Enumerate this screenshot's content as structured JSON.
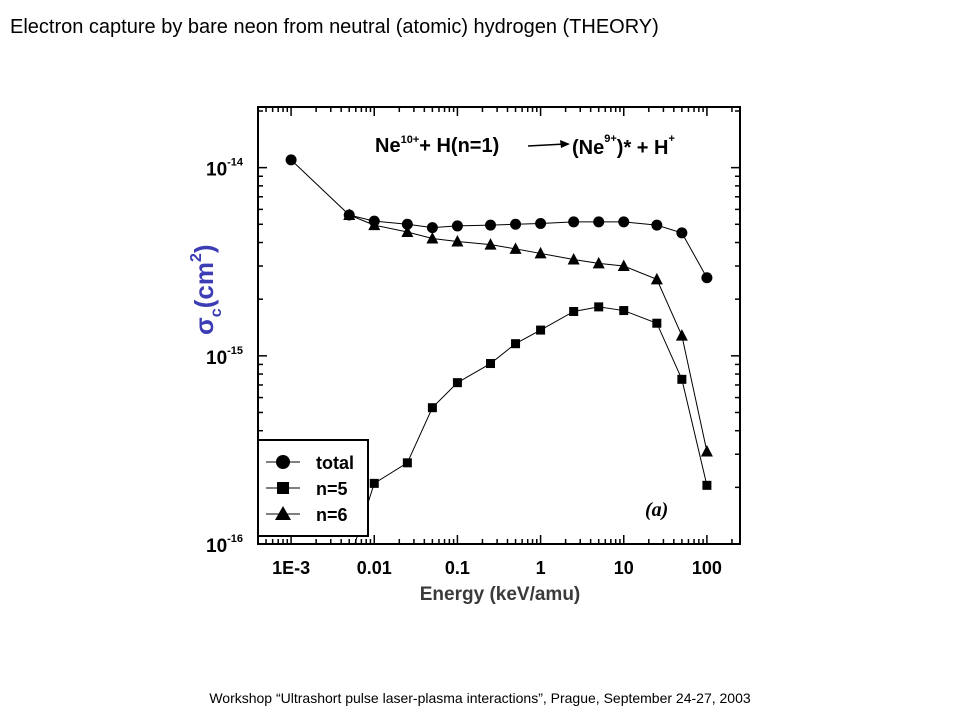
{
  "slide": {
    "title": "Electron capture by bare neon from neutral (atomic) hydrogen (THEORY)",
    "footer": "Workshop “Ultrashort pulse laser-plasma interactions”, Prague, September 24-27, 2003"
  },
  "chart_data": {
    "type": "line",
    "title": "",
    "reaction": {
      "lhs": "Ne",
      "lhs_sup": "10+",
      "plus1": "+ H(n=1)",
      "rhs_open": "(Ne",
      "rhs_sup": "9+",
      "rhs_close": ")* + H",
      "rhs_h_sup": "+"
    },
    "xlabel": "Energy (keV/amu)",
    "ylabel": {
      "sigma": "σ",
      "sub": "c",
      "unit": "(cm",
      "sup": "2",
      "close": ")"
    },
    "x_scale": "log",
    "y_scale": "log",
    "xlim": [
      0.0004,
      250
    ],
    "ylim": [
      1e-16,
      2.1e-14
    ],
    "x_ticks": [
      {
        "value": 0.001,
        "label": "1E-3"
      },
      {
        "value": 0.01,
        "label": "0.01"
      },
      {
        "value": 0.1,
        "label": "0.1"
      },
      {
        "value": 1,
        "label": "1"
      },
      {
        "value": 10,
        "label": "10"
      },
      {
        "value": 100,
        "label": "100"
      }
    ],
    "y_ticks": [
      {
        "value": 1e-16,
        "base": "10",
        "exp": "-16"
      },
      {
        "value": 1e-15,
        "base": "10",
        "exp": "-15"
      },
      {
        "value": 1e-14,
        "base": "10",
        "exp": "-14"
      }
    ],
    "panel_label": "(a)",
    "legend_position": "bottom-left",
    "series": [
      {
        "name": "total",
        "marker": "circle",
        "x": [
          0.001,
          0.005,
          0.01,
          0.025,
          0.05,
          0.1,
          0.25,
          0.5,
          1,
          2.5,
          5,
          10,
          25,
          50,
          100
        ],
        "y": [
          1.1e-14,
          5.6e-15,
          5.2e-15,
          5e-15,
          4.8e-15,
          4.9e-15,
          4.95e-15,
          5e-15,
          5.05e-15,
          5.15e-15,
          5.15e-15,
          5.15e-15,
          4.95e-15,
          4.5e-15,
          2.6e-15
        ]
      },
      {
        "name": "n=5",
        "marker": "square",
        "x": [
          0.003,
          0.01,
          0.025,
          0.05,
          0.1,
          0.25,
          0.5,
          1,
          2.5,
          5,
          10,
          25,
          50,
          100
        ],
        "y": [
          4e-17,
          2.1e-16,
          2.7e-16,
          5.3e-16,
          7.2e-16,
          9.1e-16,
          1.16e-15,
          1.37e-15,
          1.72e-15,
          1.82e-15,
          1.74e-15,
          1.49e-15,
          7.5e-16,
          2.05e-16
        ]
      },
      {
        "name": "n=6",
        "marker": "triangle",
        "x": [
          0.005,
          0.01,
          0.025,
          0.05,
          0.1,
          0.25,
          0.5,
          1,
          2.5,
          5,
          10,
          25,
          50,
          100
        ],
        "y": [
          5.6e-15,
          4.95e-15,
          4.55e-15,
          4.2e-15,
          4.05e-15,
          3.9e-15,
          3.7e-15,
          3.5e-15,
          3.25e-15,
          3.1e-15,
          3e-15,
          2.55e-15,
          1.28e-15,
          3.1e-16
        ]
      }
    ]
  }
}
